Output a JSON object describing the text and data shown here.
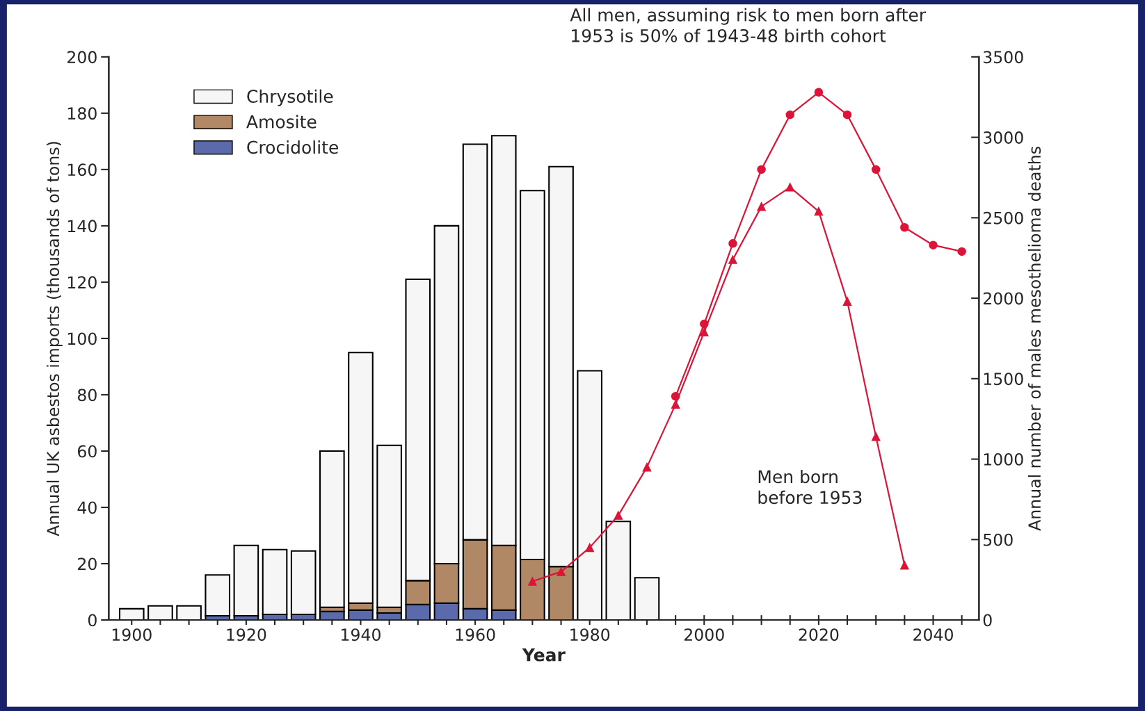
{
  "chart_data": {
    "type": "bar",
    "stacked": true,
    "x": [
      1900,
      1905,
      1910,
      1915,
      1920,
      1925,
      1930,
      1935,
      1940,
      1945,
      1950,
      1955,
      1960,
      1965,
      1970,
      1975,
      1980,
      1985,
      1990
    ],
    "series": [
      {
        "name": "Crocidolite",
        "color": "#5b6aab",
        "values": [
          0,
          null,
          null,
          1.5,
          1.5,
          2,
          2,
          3,
          3.5,
          2.5,
          5.5,
          6,
          4,
          3.5,
          null,
          0,
          null,
          0,
          0
        ]
      },
      {
        "name": "Amosite",
        "color": "#b08866",
        "values": [
          0,
          0,
          0,
          0,
          0,
          0,
          0,
          1.5,
          2.5,
          2,
          8.5,
          14,
          24.5,
          23,
          21.5,
          19,
          0,
          0,
          0
        ]
      },
      {
        "name": "Chrysotile",
        "color": "#f6f6f6",
        "values": [
          4,
          5,
          5,
          14.5,
          25,
          23,
          22.5,
          55.5,
          89,
          57.5,
          107,
          120,
          140.5,
          145.5,
          131,
          142,
          88.5,
          35,
          15
        ]
      },
      {
        "type": "line",
        "axis": "y2",
        "color": "#dc1438",
        "marker": "triangle",
        "x": [
          1970,
          1975,
          1980,
          1985,
          1990,
          1995,
          2000,
          2005,
          2010,
          2015,
          2020,
          2025,
          2030,
          2035
        ],
        "values": [
          240,
          300,
          450,
          650,
          950,
          1340,
          1790,
          2240,
          2570,
          2690,
          2540,
          1980,
          1140,
          340
        ]
      },
      {
        "type": "line",
        "axis": "y2",
        "color": "#dc1438",
        "marker": "circle",
        "x": [
          1995,
          2000,
          2005,
          2010,
          2015,
          2020,
          2025,
          2030,
          2035,
          2040,
          2045
        ],
        "values": [
          1390,
          1840,
          2340,
          2800,
          3140,
          3280,
          3140,
          2800,
          2440,
          2330,
          2290
        ]
      }
    ],
    "xlabel": "Year",
    "ylabel": "Annual UK asbestos imports (thousands of tons)",
    "y2label": "Annual number of males mesothelioma deaths",
    "xlim": [
      1896,
      2048
    ],
    "ylim": [
      0,
      200
    ],
    "y2lim": [
      0,
      3500
    ],
    "xticks": [
      1900,
      {
        "value": 1905,
        "label": null
      },
      {
        "value": 1910,
        "label": null
      },
      {
        "value": 1915,
        "label": null
      },
      1920,
      {
        "value": 1925,
        "label": null
      },
      {
        "value": 1930,
        "label": null
      },
      {
        "value": 1935,
        "label": null
      },
      1940,
      {
        "value": 1945,
        "label": null
      },
      {
        "value": 1950,
        "label": null
      },
      {
        "value": 1955,
        "label": null
      },
      1960,
      {
        "value": 1965,
        "label": null
      },
      {
        "value": 1970,
        "label": null
      },
      {
        "value": 1975,
        "label": null
      },
      1980,
      {
        "value": 1985,
        "label": null
      },
      {
        "value": 1990,
        "label": null
      },
      {
        "value": 1995,
        "label": null
      },
      2000,
      {
        "value": 2005,
        "label": null
      },
      {
        "value": 2010,
        "label": null
      },
      {
        "value": 2015,
        "label": null
      },
      2020,
      {
        "value": 2025,
        "label": null
      },
      {
        "value": 2030,
        "label": null
      },
      {
        "value": 2035,
        "label": null
      },
      2040,
      {
        "value": 2045,
        "label": null
      }
    ],
    "yticks": [
      0,
      20,
      40,
      60,
      80,
      100,
      120,
      140,
      160,
      180,
      200
    ],
    "y2ticks": [
      0,
      500,
      1000,
      1500,
      2000,
      2500,
      3000,
      3500
    ],
    "annotations": [
      "All men, assuming risk to men born after\n1953 is 50% of 1943-48 birth cohort",
      "Men born\nbefore 1953"
    ],
    "legend": "top left",
    "grid": false
  }
}
